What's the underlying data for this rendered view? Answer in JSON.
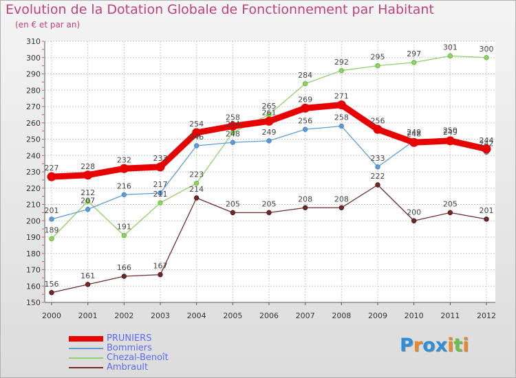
{
  "title": "Evolution de la Dotation Globale de Fonctionnement par Habitant",
  "subtitle": "(en € et par an)",
  "logo": {
    "text": "Proxiti",
    "letters": [
      "P",
      "r",
      "o",
      "x",
      "i",
      "t",
      "i"
    ],
    "colors": [
      "#2d8fd8",
      "#e8892c",
      "#2d8fd8",
      "#2d8fd8",
      "#e8892c",
      "#6cc04a",
      "#e8892c"
    ]
  },
  "chart_data": {
    "type": "line",
    "title": "Evolution de la Dotation Globale de Fonctionnement par Habitant",
    "subtitle": "(en € et par an)",
    "xlabel": "",
    "ylabel": "",
    "x": [
      "2000",
      "2001",
      "2002",
      "2003",
      "2004",
      "2005",
      "2006",
      "2007",
      "2008",
      "2009",
      "2010",
      "2011",
      "2012"
    ],
    "ylim": [
      150,
      310
    ],
    "yticks": [
      150,
      160,
      170,
      180,
      190,
      200,
      210,
      220,
      230,
      240,
      250,
      260,
      270,
      280,
      290,
      300,
      310
    ],
    "grid": true,
    "legend_position": "bottom-left",
    "series": [
      {
        "name": "PRUNIERS",
        "color": "#e80000",
        "values": [
          227,
          228,
          232,
          233,
          254,
          258,
          261,
          269,
          271,
          256,
          248,
          249,
          244
        ]
      },
      {
        "name": "Bommiers",
        "color": "#5b9bd5",
        "values": [
          201,
          207,
          216,
          217,
          246,
          248,
          249,
          256,
          258,
          233,
          249,
          250,
          242
        ]
      },
      {
        "name": "Chezal-Benoît",
        "color": "#8fd16a",
        "values": [
          189,
          212,
          191,
          211,
          223,
          254,
          265,
          284,
          292,
          295,
          297,
          301,
          300
        ]
      },
      {
        "name": "Ambrault",
        "color": "#6e2a2a",
        "values": [
          156,
          161,
          166,
          167,
          214,
          205,
          205,
          208,
          208,
          222,
          200,
          205,
          201
        ]
      }
    ]
  }
}
